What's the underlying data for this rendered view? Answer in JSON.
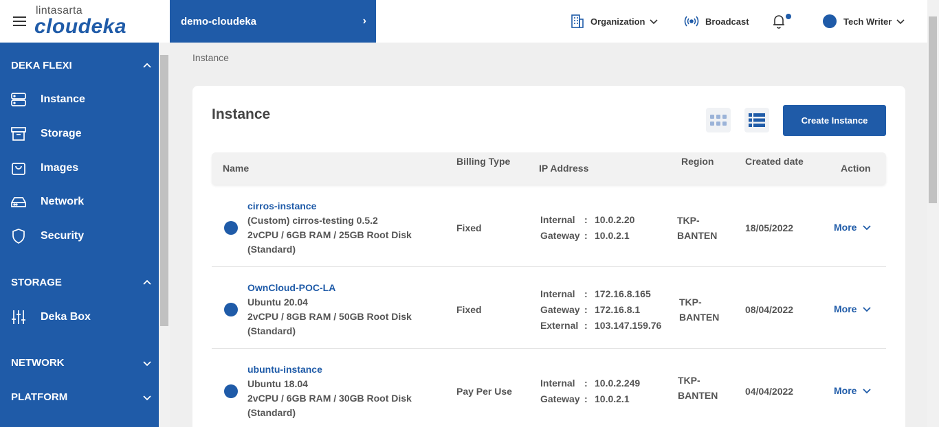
{
  "header": {
    "logo_top": "lintasarta",
    "logo_main": "cloudeka",
    "project": "demo-cloudeka",
    "organization": "Organization",
    "broadcast": "Broadcast",
    "user": "Tech Writer"
  },
  "sidebar": {
    "sections": [
      {
        "title": "DEKA FLEXI",
        "items": [
          "Instance",
          "Storage",
          "Images",
          "Network",
          "Security"
        ]
      },
      {
        "title": "STORAGE",
        "items": [
          "Deka Box"
        ]
      },
      {
        "title": "NETWORK",
        "items": []
      },
      {
        "title": "PLATFORM",
        "items": []
      }
    ]
  },
  "breadcrumb": "Instance",
  "page": {
    "title": "Instance",
    "create_button": "Create Instance"
  },
  "table": {
    "columns": [
      "Name",
      "Billing Type",
      "IP Address",
      "Region",
      "Created date",
      "Action"
    ],
    "action_label": "More",
    "rows": [
      {
        "name": "cirros-instance",
        "image": "(Custom) cirros-testing 0.5.2",
        "spec": "2vCPU / 6GB RAM / 25GB Root Disk",
        "tier": "(Standard)",
        "billing": "Fixed",
        "ips": [
          {
            "label": "Internal",
            "value": "10.0.2.20"
          },
          {
            "label": "Gateway",
            "value": "10.0.2.1"
          }
        ],
        "region_1": "TKP-",
        "region_2": "BANTEN",
        "created": "18/05/2022"
      },
      {
        "name": "OwnCloud-POC-LA",
        "image": "Ubuntu 20.04",
        "spec": "2vCPU / 8GB RAM / 50GB Root Disk",
        "tier": "(Standard)",
        "billing": "Fixed",
        "ips": [
          {
            "label": "Internal",
            "value": "172.16.8.165"
          },
          {
            "label": "Gateway",
            "value": "172.16.8.1"
          },
          {
            "label": "External",
            "value": "103.147.159.76"
          }
        ],
        "region_1": "TKP-",
        "region_2": "BANTEN",
        "created": "08/04/2022"
      },
      {
        "name": "ubuntu-instance",
        "image": "Ubuntu 18.04",
        "spec": "2vCPU / 6GB RAM / 30GB Root Disk",
        "tier": "(Standard)",
        "billing": "Pay Per Use",
        "ips": [
          {
            "label": "Internal",
            "value": "10.0.2.249"
          },
          {
            "label": "Gateway",
            "value": "10.0.2.1"
          }
        ],
        "region_1": "TKP-",
        "region_2": "BANTEN",
        "created": "04/04/2022"
      }
    ]
  }
}
